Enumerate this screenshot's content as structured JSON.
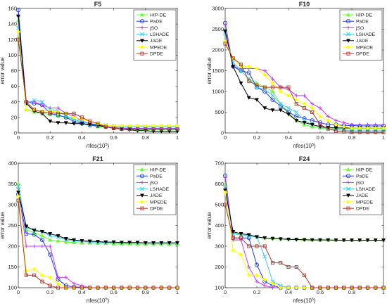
{
  "style": {
    "series_colors": {
      "HIP-DE": "#66ff33",
      "PaDE": "#1a3dff",
      "jSO": "#cc33ff",
      "LSHADE": "#33ccee",
      "JADE": "#000000",
      "MPEDE": "#ffff00",
      "DPDE": "#b23a2a"
    },
    "series_markers": {
      "HIP-DE": "triangle-up",
      "PaDE": "circle",
      "jSO": "plus",
      "LSHADE": "x",
      "JADE": "triangle-down",
      "MPEDE": "diamond",
      "DPDE": "square"
    },
    "grid": false,
    "legend_position": "top-right"
  },
  "chart_data": [
    {
      "type": "line",
      "title": "F5",
      "xlabel": "nfes(10",
      "xlabel_exp": "5",
      "xlabel_close": ")",
      "ylabel": "error value",
      "xlim": [
        0,
        1
      ],
      "ylim": [
        0,
        160
      ],
      "xticks": [
        "0",
        "0.2",
        "0.4",
        "0.6",
        "0.8",
        "1"
      ],
      "yticks": [
        "0",
        "20",
        "40",
        "60",
        "80",
        "100",
        "120",
        "140",
        "160"
      ],
      "legend": [
        "HIP-DE",
        "PaDE",
        "jSO",
        "LSHADE",
        "JADE",
        "MPEDE",
        "DPDE"
      ],
      "x": [
        0,
        0.05,
        0.1,
        0.15,
        0.2,
        0.25,
        0.3,
        0.35,
        0.4,
        0.45,
        0.5,
        0.55,
        0.6,
        0.65,
        0.7,
        0.75,
        0.8,
        0.85,
        0.9,
        0.95,
        1
      ],
      "series": [
        {
          "name": "HIP-DE",
          "values": [
            145,
            30,
            27,
            25,
            24,
            22,
            20,
            18,
            12,
            10,
            8,
            7,
            6,
            5,
            5,
            4,
            4,
            4,
            4,
            4,
            4
          ]
        },
        {
          "name": "PaDE",
          "values": [
            158,
            40,
            38,
            36,
            25,
            23,
            20,
            15,
            12,
            10,
            9,
            8,
            7,
            6,
            6,
            5,
            5,
            5,
            5,
            5,
            5
          ]
        },
        {
          "name": "jSO",
          "values": [
            150,
            40,
            40,
            36,
            32,
            32,
            25,
            22,
            15,
            12,
            10,
            8,
            7,
            6,
            6,
            6,
            6,
            6,
            6,
            6,
            6
          ]
        },
        {
          "name": "LSHADE",
          "values": [
            135,
            38,
            42,
            40,
            30,
            28,
            22,
            18,
            14,
            12,
            11,
            10,
            9,
            8,
            8,
            8,
            8,
            8,
            8,
            8,
            8
          ]
        },
        {
          "name": "JADE",
          "values": [
            150,
            38,
            28,
            25,
            15,
            13,
            13,
            12,
            12,
            11,
            10,
            8,
            6,
            5,
            4,
            3,
            3,
            2,
            2,
            2,
            2
          ]
        },
        {
          "name": "MPEDE",
          "values": [
            130,
            30,
            30,
            28,
            28,
            27,
            25,
            20,
            18,
            15,
            12,
            10,
            9,
            9,
            9,
            9,
            9,
            9,
            9,
            9,
            9
          ]
        },
        {
          "name": "DPDE",
          "values": [
            120,
            40,
            30,
            27,
            26,
            25,
            25,
            25,
            20,
            15,
            12,
            8,
            6,
            5,
            5,
            5,
            5,
            5,
            5,
            5,
            5
          ]
        }
      ]
    },
    {
      "type": "line",
      "title": "F10",
      "xlabel": "nfes(10",
      "xlabel_exp": "5",
      "xlabel_close": ")",
      "ylabel": "error value",
      "xlim": [
        0,
        1
      ],
      "ylim": [
        0,
        3000
      ],
      "xticks": [
        "0",
        "0.2",
        "0.4",
        "0.6",
        "0.8",
        "1"
      ],
      "yticks": [
        "0",
        "500",
        "1000",
        "1500",
        "2000",
        "2500",
        "3000"
      ],
      "legend": [
        "HIP-DE",
        "PaDE",
        "jSO",
        "LSHADE",
        "JADE",
        "MPEDE",
        "DPDE"
      ],
      "x": [
        0,
        0.05,
        0.1,
        0.15,
        0.2,
        0.25,
        0.3,
        0.35,
        0.4,
        0.45,
        0.5,
        0.55,
        0.6,
        0.65,
        0.7,
        0.75,
        0.8,
        0.85,
        0.9,
        0.95,
        1
      ],
      "series": [
        {
          "name": "HIP-DE",
          "values": [
            2500,
            1600,
            1500,
            1300,
            1200,
            1100,
            1000,
            700,
            500,
            300,
            200,
            150,
            120,
            100,
            100,
            100,
            100,
            100,
            100,
            100,
            100
          ]
        },
        {
          "name": "PaDE",
          "values": [
            2650,
            1600,
            1500,
            1450,
            1100,
            1000,
            800,
            650,
            500,
            400,
            350,
            300,
            250,
            200,
            200,
            180,
            180,
            170,
            170,
            170,
            170
          ]
        },
        {
          "name": "jSO",
          "values": [
            2600,
            1600,
            1550,
            1550,
            1550,
            1500,
            1300,
            1100,
            1050,
            900,
            900,
            700,
            600,
            400,
            300,
            250,
            200,
            200,
            200,
            200,
            200
          ]
        },
        {
          "name": "LSHADE",
          "values": [
            2400,
            1700,
            1500,
            1300,
            1100,
            1050,
            900,
            700,
            600,
            500,
            300,
            200,
            150,
            100,
            80,
            60,
            50,
            50,
            50,
            50,
            50
          ]
        },
        {
          "name": "JADE",
          "values": [
            2450,
            1600,
            1200,
            850,
            800,
            600,
            550,
            550,
            450,
            300,
            250,
            200,
            150,
            130,
            120,
            120,
            120,
            120,
            120,
            120,
            120
          ]
        },
        {
          "name": "MPEDE",
          "values": [
            2200,
            1800,
            1600,
            1600,
            1550,
            1400,
            1200,
            1000,
            900,
            800,
            700,
            600,
            400,
            300,
            200,
            150,
            120,
            120,
            120,
            120,
            120
          ]
        },
        {
          "name": "DPDE",
          "values": [
            2150,
            1800,
            1650,
            1250,
            1150,
            1100,
            1100,
            1100,
            1100,
            700,
            600,
            500,
            200,
            100,
            50,
            30,
            20,
            20,
            20,
            20,
            20
          ]
        }
      ]
    },
    {
      "type": "line",
      "title": "F21",
      "xlabel": "nfes(10",
      "xlabel_exp": "5",
      "xlabel_close": ")",
      "ylabel": "error value",
      "xlim": [
        0,
        1
      ],
      "ylim": [
        100,
        400
      ],
      "xticks": [
        "0",
        "0.2",
        "0.4",
        "0.6",
        "0.8",
        "1"
      ],
      "yticks": [
        "100",
        "150",
        "200",
        "250",
        "300",
        "350",
        "400"
      ],
      "legend": [
        "HIP-DE",
        "PaDE",
        "jSO",
        "LSHADE",
        "JADE",
        "MPEDE",
        "DPDE"
      ],
      "x": [
        0,
        0.05,
        0.1,
        0.15,
        0.2,
        0.25,
        0.3,
        0.35,
        0.4,
        0.45,
        0.5,
        0.55,
        0.6,
        0.65,
        0.7,
        0.75,
        0.8,
        0.85,
        0.9,
        0.95,
        1
      ],
      "series": [
        {
          "name": "HIP-DE",
          "values": [
            350,
            240,
            232,
            225,
            215,
            213,
            210,
            209,
            208,
            208,
            207,
            207,
            206,
            206,
            206,
            205,
            205,
            205,
            205,
            205,
            205
          ]
        },
        {
          "name": "PaDE",
          "values": [
            325,
            230,
            228,
            215,
            180,
            120,
            105,
            102,
            101,
            100,
            100,
            100,
            100,
            100,
            100,
            100,
            100,
            100,
            100,
            100,
            100
          ]
        },
        {
          "name": "jSO",
          "values": [
            340,
            200,
            200,
            200,
            200,
            125,
            125,
            110,
            105,
            100,
            100,
            100,
            100,
            100,
            100,
            100,
            100,
            100,
            100,
            100,
            100
          ]
        },
        {
          "name": "LSHADE",
          "values": [
            345,
            245,
            240,
            235,
            225,
            222,
            215,
            213,
            212,
            210,
            210,
            209,
            209,
            208,
            208,
            208,
            208,
            208,
            208,
            208,
            208
          ]
        },
        {
          "name": "JADE",
          "values": [
            330,
            248,
            238,
            235,
            230,
            225,
            218,
            215,
            213,
            212,
            211,
            210,
            210,
            209,
            209,
            209,
            208,
            208,
            208,
            208,
            208
          ]
        },
        {
          "name": "MPEDE",
          "values": [
            320,
            140,
            145,
            130,
            125,
            110,
            100,
            100,
            100,
            100,
            100,
            100,
            100,
            100,
            100,
            100,
            100,
            100,
            100,
            100,
            100
          ]
        },
        {
          "name": "DPDE",
          "values": [
            310,
            130,
            130,
            115,
            105,
            100,
            100,
            100,
            100,
            100,
            100,
            100,
            100,
            100,
            100,
            100,
            100,
            100,
            100,
            100,
            100
          ]
        }
      ]
    },
    {
      "type": "line",
      "title": "F24",
      "xlabel": "nfes(10",
      "xlabel_exp": "5",
      "xlabel_close": ")",
      "ylabel": "error value",
      "xlim": [
        0,
        1
      ],
      "ylim": [
        100,
        700
      ],
      "xticks": [
        "0",
        "0.2",
        "0.4",
        "0.6",
        "0.8",
        "1"
      ],
      "yticks": [
        "100",
        "200",
        "300",
        "400",
        "500",
        "600",
        "700"
      ],
      "legend": [
        "HIP-DE",
        "PaDE",
        "jSO",
        "LSHADE",
        "JADE",
        "MPEDE",
        "DPDE"
      ],
      "x": [
        0,
        0.05,
        0.1,
        0.15,
        0.2,
        0.25,
        0.3,
        0.35,
        0.4,
        0.45,
        0.5,
        0.55,
        0.6,
        0.65,
        0.7,
        0.75,
        0.8,
        0.85,
        0.9,
        0.95,
        1
      ],
      "series": [
        {
          "name": "HIP-DE",
          "values": [
            600,
            365,
            355,
            350,
            345,
            340,
            338,
            336,
            334,
            333,
            332,
            331,
            330,
            330,
            330,
            329,
            329,
            329,
            329,
            329,
            329
          ]
        },
        {
          "name": "PaDE",
          "values": [
            640,
            340,
            340,
            340,
            210,
            130,
            110,
            100,
            100,
            100,
            100,
            100,
            100,
            100,
            100,
            100,
            100,
            100,
            100,
            100,
            100
          ]
        },
        {
          "name": "jSO",
          "values": [
            630,
            330,
            330,
            200,
            130,
            110,
            100,
            100,
            100,
            100,
            100,
            100,
            100,
            100,
            100,
            100,
            100,
            100,
            100,
            100,
            100
          ]
        },
        {
          "name": "LSHADE",
          "values": [
            580,
            360,
            355,
            350,
            345,
            250,
            130,
            110,
            100,
            100,
            100,
            100,
            100,
            100,
            100,
            100,
            100,
            100,
            100,
            100,
            100
          ]
        },
        {
          "name": "JADE",
          "values": [
            570,
            370,
            360,
            355,
            345,
            340,
            337,
            335,
            333,
            332,
            331,
            330,
            330,
            330,
            329,
            329,
            329,
            329,
            329,
            329,
            329
          ]
        },
        {
          "name": "MPEDE",
          "values": [
            560,
            280,
            260,
            160,
            160,
            140,
            120,
            100,
            100,
            100,
            100,
            100,
            100,
            100,
            100,
            100,
            100,
            100,
            100,
            100,
            100
          ]
        },
        {
          "name": "DPDE",
          "values": [
            500,
            340,
            340,
            300,
            300,
            300,
            220,
            220,
            200,
            200,
            160,
            100,
            100,
            100,
            100,
            100,
            100,
            100,
            100,
            100,
            100
          ]
        }
      ]
    }
  ]
}
